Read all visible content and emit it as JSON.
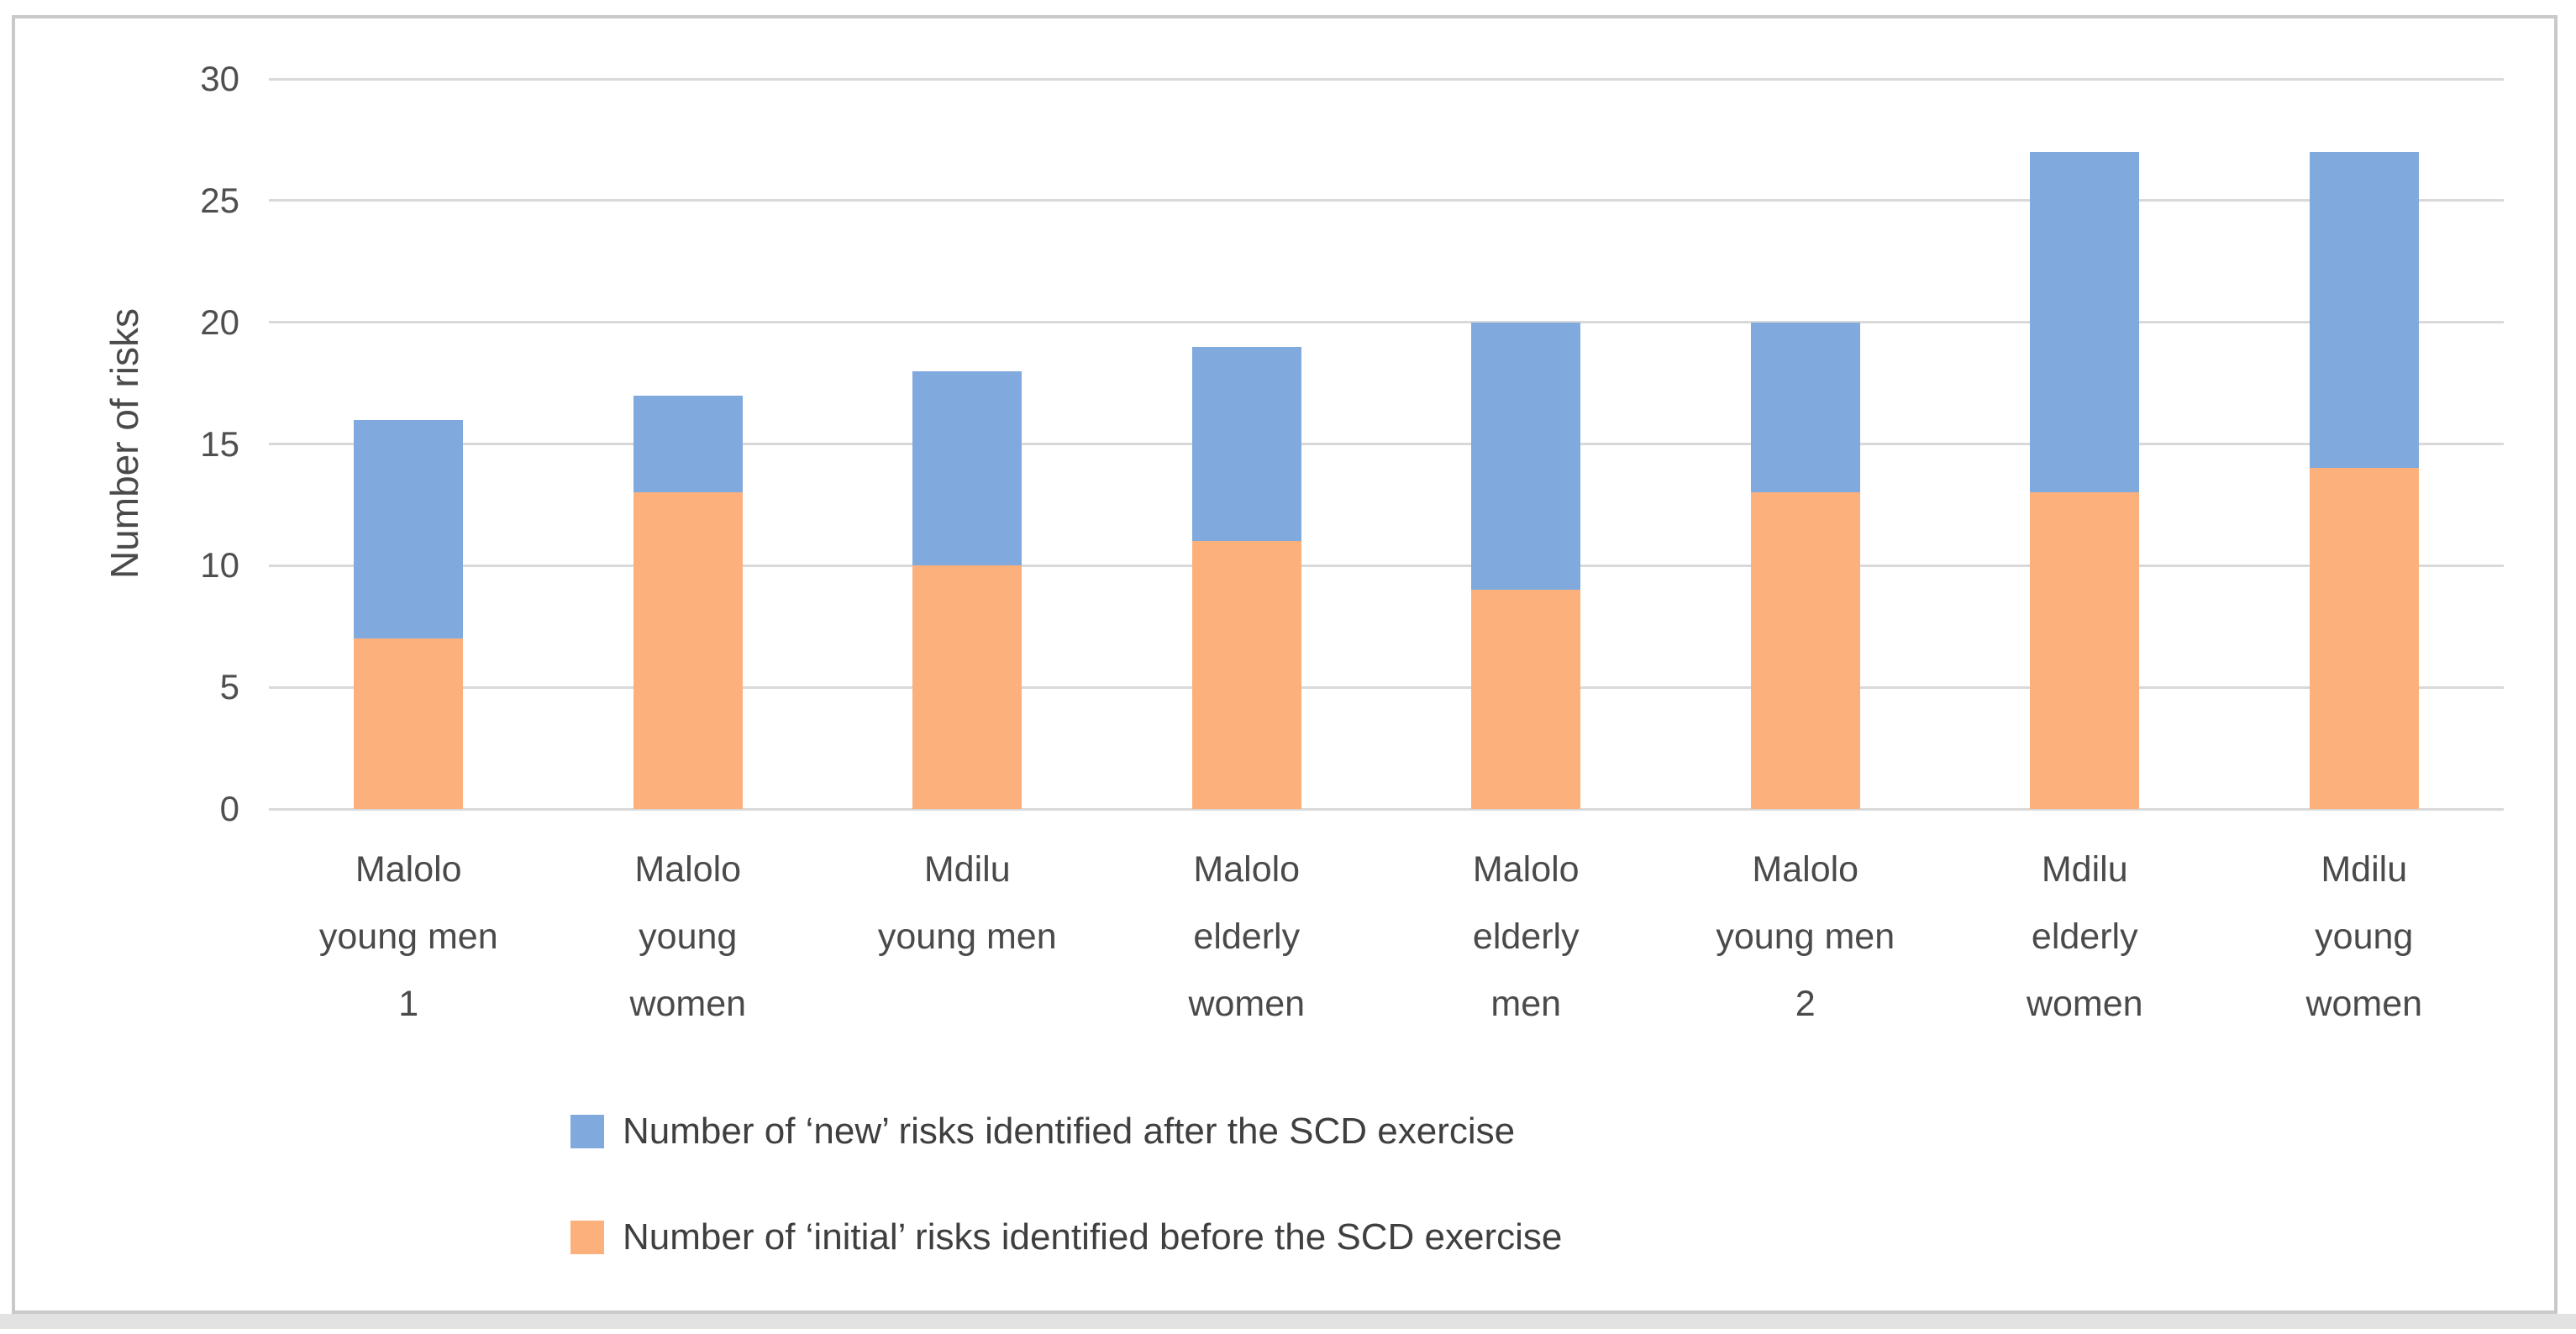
{
  "chart_data": {
    "type": "bar",
    "stacked": true,
    "title": "",
    "xlabel": "",
    "ylabel": "Number of risks",
    "ylim": [
      0,
      30
    ],
    "yticks": [
      0,
      5,
      10,
      15,
      20,
      25,
      30
    ],
    "grid": true,
    "gridline_color": "#d9d9d9",
    "legend_position": "bottom-left",
    "categories": [
      "Malolo young men 1",
      "Malolo young women",
      "Mdilu young men",
      "Malolo elderly women",
      "Malolo elderly men",
      "Malolo young men 2",
      "Mdilu elderly women",
      "Mdilu young women"
    ],
    "category_label_lines": [
      [
        "Malolo",
        "young men",
        "1"
      ],
      [
        "Malolo",
        "young",
        "women"
      ],
      [
        "Mdilu",
        "young men"
      ],
      [
        "Malolo",
        "elderly",
        "women"
      ],
      [
        "Malolo",
        "elderly",
        "men"
      ],
      [
        "Malolo",
        "young men",
        "2"
      ],
      [
        "Mdilu",
        "elderly",
        "women"
      ],
      [
        "Mdilu",
        "young",
        "women"
      ]
    ],
    "series": [
      {
        "name": "Number of ‘initial’ risks identified before the SCD exercise",
        "color": "#fcb17c",
        "values": [
          7,
          13,
          10,
          11,
          9,
          13,
          13,
          14
        ]
      },
      {
        "name": "Number of ‘new’ risks identified after the SCD exercise",
        "color": "#80a9de",
        "values": [
          9,
          4,
          8,
          8,
          11,
          7,
          14,
          13
        ]
      }
    ],
    "stack_totals": [
      16,
      17,
      18,
      19,
      20,
      20,
      27,
      27
    ]
  },
  "axis": {
    "y_title": "Number of risks"
  },
  "frame": {
    "border_color": "#c9c9c9",
    "bottom_strip_color": "#e2e2e2"
  }
}
